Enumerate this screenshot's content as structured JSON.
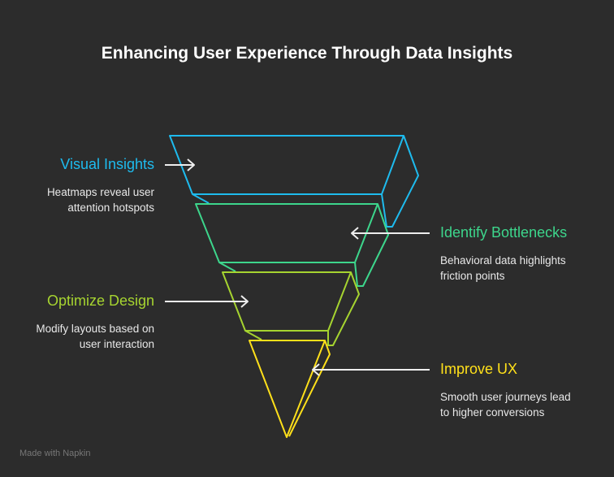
{
  "title": "Enhancing User Experience Through Data Insights",
  "stages": [
    {
      "heading": "Visual Insights",
      "desc1": "Heatmaps reveal user",
      "desc2": "attention hotspots",
      "color": "#1ebbee"
    },
    {
      "heading": "Identify Bottlenecks",
      "desc1": "Behavioral data highlights",
      "desc2": "friction points",
      "color": "#3dd68c"
    },
    {
      "heading": "Optimize Design",
      "desc1": "Modify layouts based on",
      "desc2": "user interaction",
      "color": "#a6d430"
    },
    {
      "heading": "Improve UX",
      "desc1": "Smooth user journeys lead",
      "desc2": "to higher conversions",
      "color": "#ffe01a"
    }
  ],
  "footer": "Made with  Napkin"
}
